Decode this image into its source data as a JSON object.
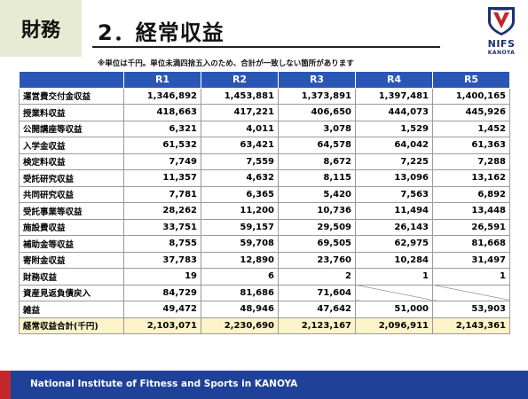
{
  "header": {
    "section_tag": "財務",
    "title": "2．経常収益",
    "note": "※単位は千円。単位未満四捨五入のため、合計が一致しない箇所があります"
  },
  "logo": {
    "text": "NIFS",
    "sub": "KANOYA",
    "colors": {
      "navy": "#1a2f6e",
      "red": "#c4262e"
    }
  },
  "footer": {
    "text": "National Institute of Fitness and Sports in KANOYA"
  },
  "colors": {
    "header_blue": "#2a57b5",
    "total_row": "#fdf3c9",
    "footer_blue": "#1f4198",
    "footer_red": "#c4262e",
    "tag_bg": "#e8ebd3"
  },
  "chart_data": {
    "type": "table",
    "columns": [
      "R1",
      "R2",
      "R3",
      "R4",
      "R5"
    ],
    "rows": [
      {
        "label": "運営費交付金収益",
        "values": [
          "1,346,892",
          "1,453,881",
          "1,373,891",
          "1,397,481",
          "1,400,165"
        ]
      },
      {
        "label": "授業料収益",
        "values": [
          "418,663",
          "417,221",
          "406,650",
          "444,073",
          "445,926"
        ]
      },
      {
        "label": "公開講座等収益",
        "values": [
          "6,321",
          "4,011",
          "3,078",
          "1,529",
          "1,452"
        ]
      },
      {
        "label": "入学金収益",
        "values": [
          "61,532",
          "63,421",
          "64,578",
          "64,042",
          "61,363"
        ]
      },
      {
        "label": "検定料収益",
        "values": [
          "7,749",
          "7,559",
          "8,672",
          "7,225",
          "7,288"
        ]
      },
      {
        "label": "受託研究収益",
        "values": [
          "11,357",
          "4,632",
          "8,115",
          "13,096",
          "13,162"
        ]
      },
      {
        "label": "共同研究収益",
        "values": [
          "7,781",
          "6,365",
          "5,420",
          "7,563",
          "6,892"
        ]
      },
      {
        "label": "受託事業等収益",
        "values": [
          "28,262",
          "11,200",
          "10,736",
          "11,494",
          "13,448"
        ]
      },
      {
        "label": "施設費収益",
        "values": [
          "33,751",
          "59,157",
          "29,509",
          "26,143",
          "26,591"
        ]
      },
      {
        "label": "補助金等収益",
        "values": [
          "8,755",
          "59,708",
          "69,505",
          "62,975",
          "81,668"
        ]
      },
      {
        "label": "寄附金収益",
        "values": [
          "37,783",
          "12,890",
          "23,760",
          "10,284",
          "31,497"
        ]
      },
      {
        "label": "財務収益",
        "values": [
          "19",
          "6",
          "2",
          "1",
          "1"
        ]
      },
      {
        "label": "資産見返負債戻入",
        "values": [
          "84,729",
          "81,686",
          "71,604",
          null,
          null
        ]
      },
      {
        "label": "雑益",
        "values": [
          "49,472",
          "48,946",
          "47,642",
          "51,000",
          "53,903"
        ]
      }
    ],
    "total": {
      "label": "経常収益合計(千円)",
      "values": [
        "2,103,071",
        "2,230,690",
        "2,123,167",
        "2,096,911",
        "2,143,361"
      ]
    }
  }
}
